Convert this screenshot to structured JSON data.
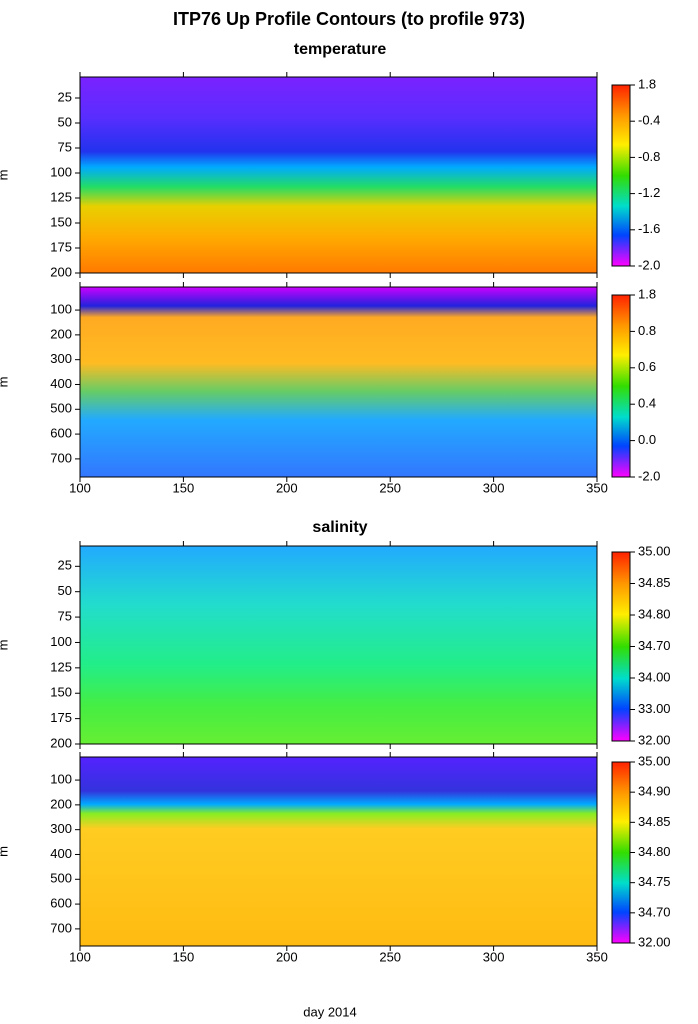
{
  "title": "ITP76 Up Profile Contours (to profile 973)",
  "xlabel": "day 2014",
  "chart_data": [
    {
      "type": "contour",
      "subtitle": "temperature",
      "ylabel": "m",
      "xlim": [
        100,
        350
      ],
      "xticks": [
        100,
        150,
        200,
        250,
        300,
        350
      ],
      "xtick_labels": false,
      "ylim": [
        200,
        4
      ],
      "yticks": [
        25,
        50,
        75,
        100,
        125,
        150,
        175,
        200
      ],
      "colorbar_ticks": [
        1.8,
        -0.4,
        -0.8,
        -1.2,
        -1.6,
        {
          "value": -2,
          "label": "-2.0"
        }
      ]
    },
    {
      "type": "contour",
      "ylabel": "m",
      "xlim": [
        100,
        350
      ],
      "xticks": [
        100,
        150,
        200,
        250,
        300,
        350
      ],
      "xtick_labels": true,
      "ylim": [
        773,
        7
      ],
      "yticks": [
        100,
        200,
        300,
        400,
        500,
        600,
        700
      ],
      "colorbar_ticks": [
        1.8,
        0.8,
        0.6,
        0.4,
        {
          "value": 0,
          "label": "0.0"
        },
        {
          "value": -2,
          "label": "-2.0"
        }
      ]
    },
    {
      "type": "contour",
      "subtitle": "salinity",
      "ylabel": "m",
      "xlim": [
        100,
        350
      ],
      "xticks": [
        100,
        150,
        200,
        250,
        300,
        350
      ],
      "xtick_labels": false,
      "ylim": [
        200,
        5
      ],
      "yticks": [
        25,
        50,
        75,
        100,
        125,
        150,
        175,
        200
      ],
      "colorbar_ticks": [
        {
          "value": 35,
          "label": "35.00"
        },
        34.85,
        {
          "value": 34.8,
          "label": "34.80"
        },
        {
          "value": 34.7,
          "label": "34.70"
        },
        {
          "value": 34,
          "label": "34.00"
        },
        {
          "value": 33,
          "label": "33.00"
        },
        {
          "value": 32,
          "label": "32.00"
        }
      ]
    },
    {
      "type": "contour",
      "ylabel": "m",
      "xlim": [
        100,
        350
      ],
      "xticks": [
        100,
        150,
        200,
        250,
        300,
        350
      ],
      "xtick_labels": true,
      "ylim": [
        769,
        7
      ],
      "yticks": [
        100,
        200,
        300,
        400,
        500,
        600,
        700
      ],
      "colorbar_ticks": [
        {
          "value": 35,
          "label": "35.00"
        },
        {
          "value": 34.9,
          "label": "34.90"
        },
        34.85,
        {
          "value": 34.8,
          "label": "34.80"
        },
        34.75,
        {
          "value": 34.7,
          "label": "34.70"
        },
        {
          "value": 32,
          "label": "32.00"
        }
      ]
    }
  ]
}
